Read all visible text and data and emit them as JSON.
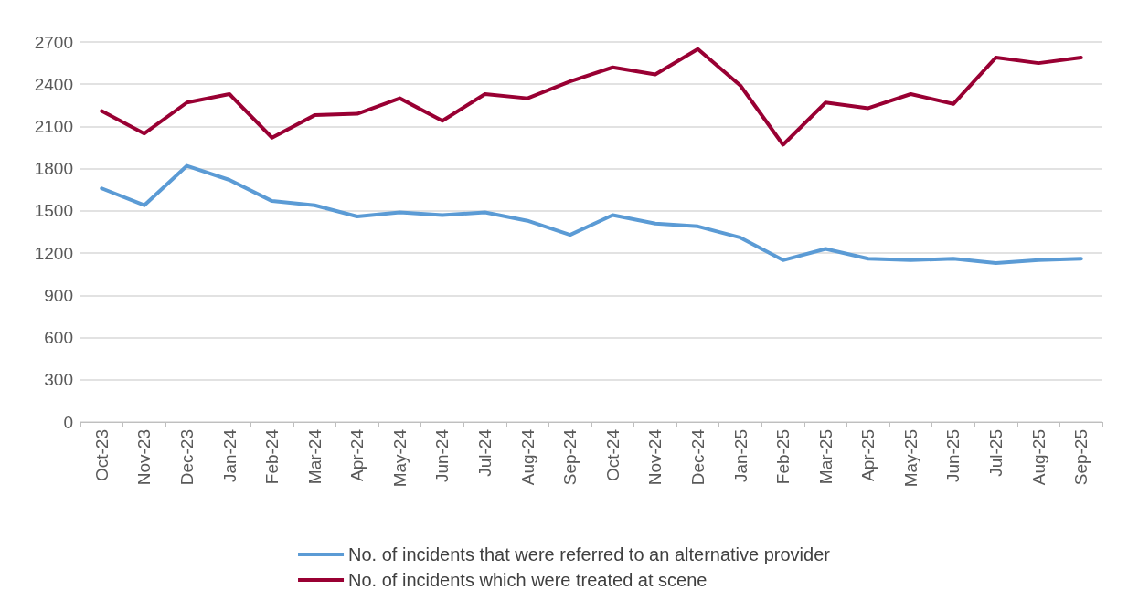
{
  "chart_data": {
    "type": "line",
    "categories": [
      "Oct-23",
      "Nov-23",
      "Dec-23",
      "Jan-24",
      "Feb-24",
      "Mar-24",
      "Apr-24",
      "May-24",
      "Jun-24",
      "Jul-24",
      "Aug-24",
      "Sep-24",
      "Oct-24",
      "Nov-24",
      "Dec-24",
      "Jan-25",
      "Feb-25",
      "Mar-25",
      "Apr-25",
      "May-25",
      "Jun-25",
      "Jul-25",
      "Aug-25",
      "Sep-25"
    ],
    "series": [
      {
        "name": "No. of incidents that were referred to an alternative provider",
        "color": "#5b9bd5",
        "values": [
          1660,
          1540,
          1820,
          1720,
          1570,
          1540,
          1460,
          1490,
          1470,
          1490,
          1430,
          1330,
          1470,
          1410,
          1390,
          1310,
          1150,
          1230,
          1160,
          1150,
          1160,
          1130,
          1150,
          1160
        ]
      },
      {
        "name": "No. of incidents which were treated at scene",
        "color": "#990033",
        "values": [
          2210,
          2050,
          2270,
          2330,
          2020,
          2180,
          2190,
          2300,
          2140,
          2330,
          2300,
          2420,
          2520,
          2470,
          2650,
          2390,
          1970,
          2270,
          2230,
          2330,
          2260,
          2590,
          2550,
          2590
        ]
      }
    ],
    "ylim": [
      0,
      2700
    ],
    "yticks": [
      0,
      300,
      600,
      900,
      1200,
      1500,
      1800,
      2100,
      2400,
      2700
    ],
    "grid": "y",
    "legend": "bottom",
    "marker": "none",
    "line_style": "solid"
  }
}
